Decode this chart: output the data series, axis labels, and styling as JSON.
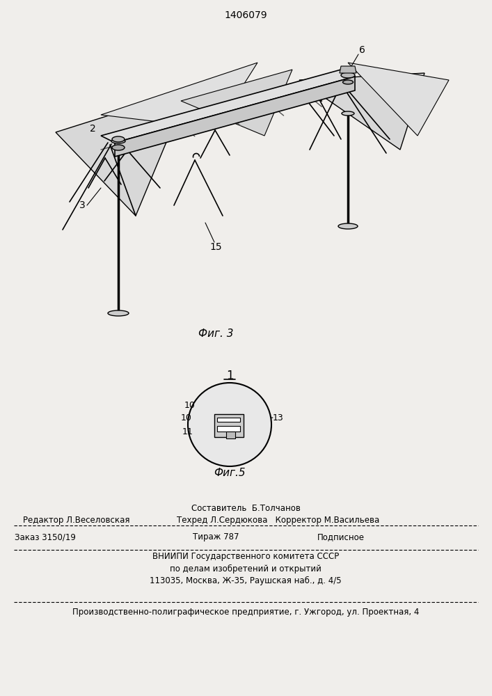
{
  "patent_number": "1406079",
  "background_color": "#f0eeeb",
  "fig3_label": "Фиг. 3",
  "fig5_label": "Фиг.5",
  "fig_number_label": "1",
  "label_2": "2",
  "label_3": "3",
  "label_6": "6",
  "label_15": "15",
  "label_10a": "10",
  "label_10b": "10",
  "label_11": "11",
  "label_13": "13",
  "footer_line1_left": "Редактор Л.Веселовская",
  "footer_line1_center": "Составитель  Б.Толчанов",
  "footer_line1_right": "",
  "footer_line2_center": "Техред Л.Сердюкова   Корректор М.Васильева",
  "footer_line3_left": "Заказ 3150/19",
  "footer_line3_center": "Тираж 787",
  "footer_line3_right": "Подписное",
  "footer_line4": "ВНИИПИ Государственного комитета СССР",
  "footer_line5": "по делам изобретений и открытий",
  "footer_line6": "113035, Москва, Ж-35, Раушская наб., д. 4/5",
  "footer_last": "Производственно-полиграфическое предприятие, г. Ужгород, ул. Проектная, 4"
}
